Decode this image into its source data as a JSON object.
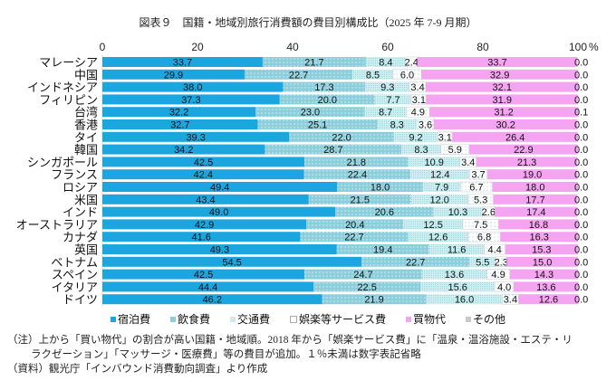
{
  "chart_data": {
    "type": "bar",
    "orientation": "horizontal",
    "stacked": true,
    "title": "図表９　国籍・地域別旅行消費額の費目別構成比（2025 年 7-9 月期）",
    "xlim": [
      0,
      100
    ],
    "xticks": [
      "0",
      "20",
      "40",
      "60",
      "80",
      "100"
    ],
    "xunit": "%",
    "legend_position": "bottom",
    "categories": [
      "マレーシア",
      "中国",
      "インドネシア",
      "フィリピン",
      "台湾",
      "香港",
      "タイ",
      "韓国",
      "シンガポール",
      "フランス",
      "ロシア",
      "米国",
      "インド",
      "オーストラリア",
      "カナダ",
      "英国",
      "ベトナム",
      "スペイン",
      "イタリア",
      "ドイツ"
    ],
    "series": [
      {
        "name": "宿泊費",
        "color": "#1ba6e0",
        "values": [
          33.7,
          29.9,
          38.0,
          37.3,
          32.2,
          32.7,
          39.3,
          34.2,
          42.5,
          42.4,
          49.4,
          43.4,
          49.0,
          42.9,
          41.6,
          49.3,
          54.5,
          42.5,
          44.4,
          46.2
        ]
      },
      {
        "name": "飲食費",
        "color": "#8ccfdc",
        "values": [
          21.7,
          22.7,
          17.3,
          20.0,
          23.0,
          25.1,
          22.0,
          28.7,
          21.8,
          22.4,
          18.0,
          21.5,
          20.6,
          20.4,
          22.7,
          19.4,
          22.7,
          24.7,
          22.5,
          21.9
        ]
      },
      {
        "name": "交通費",
        "color": "#bfe2e9",
        "values": [
          8.4,
          8.5,
          9.3,
          7.7,
          8.7,
          8.3,
          9.2,
          8.3,
          10.9,
          12.4,
          7.9,
          12.0,
          10.3,
          12.5,
          12.6,
          11.6,
          5.5,
          13.6,
          15.6,
          16.0
        ]
      },
      {
        "name": "娯楽等サービス費",
        "color": "#ffffff",
        "values": [
          2.4,
          6.0,
          3.4,
          3.1,
          4.9,
          3.6,
          3.1,
          5.9,
          3.4,
          3.7,
          6.7,
          5.3,
          2.6,
          7.5,
          6.8,
          4.4,
          2.3,
          4.9,
          4.0,
          3.4
        ]
      },
      {
        "name": "買物代",
        "color": "#f4a4f0",
        "values": [
          33.7,
          32.9,
          32.1,
          31.9,
          31.2,
          30.2,
          26.4,
          22.9,
          21.3,
          19.0,
          18.0,
          17.7,
          17.4,
          16.8,
          16.3,
          15.3,
          15.0,
          14.3,
          13.6,
          12.6
        ]
      },
      {
        "name": "その他",
        "color": "#c8c8c8",
        "values": [
          0.0,
          0.0,
          0.0,
          0.0,
          0.1,
          0.0,
          0.0,
          0.0,
          0.0,
          0.0,
          0.0,
          0.0,
          0.0,
          0.0,
          0.0,
          0.0,
          0.0,
          0.0,
          0.0,
          0.0
        ]
      }
    ]
  },
  "notes": {
    "note_line1": "（注）上から「買い物代」の割合が高い国籍・地域順。2018 年から「娯楽サービス費」に「温泉・温浴施設・エステ・リ",
    "note_line2": "ラクゼーション」「マッサージ・医療費」等の費目が追加。１％未満は数字表記省略",
    "source": "（資料）観光庁「インバウンド消費動向調査」より作成"
  }
}
